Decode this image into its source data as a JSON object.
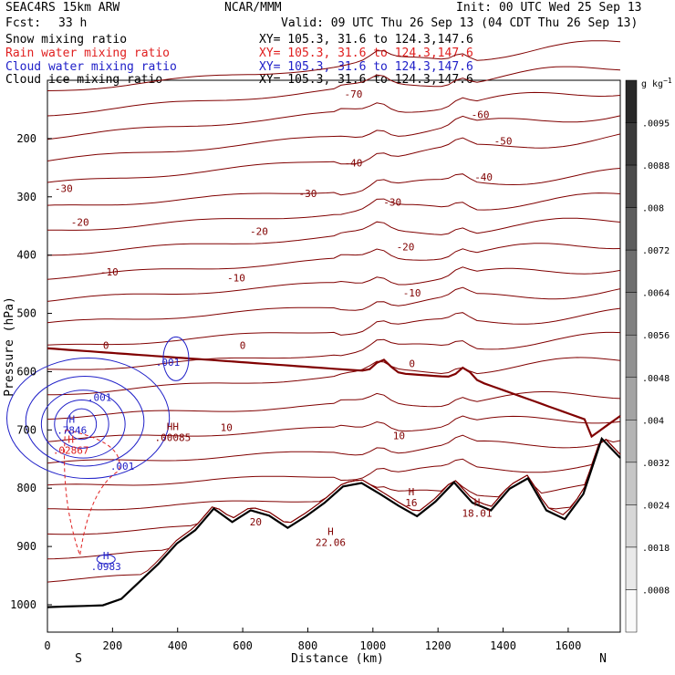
{
  "header": {
    "model": "SEAC4RS 15km ARW",
    "center": "NCAR/MMM",
    "init": "Init: 00 UTC Wed 25 Sep 13",
    "fcst_label": "Fcst:",
    "fcst_value": "33 h",
    "valid": "Valid: 09 UTC Thu 26 Sep 13 (04 CDT Thu 26 Sep 13)"
  },
  "fields": [
    {
      "name": "Snow mixing ratio",
      "xy": "XY= 105.3, 31.6 to 124.3,147.6",
      "color": "#000000"
    },
    {
      "name": "Rain water mixing ratio",
      "xy": "XY= 105.3, 31.6 to 124.3,147.6",
      "color": "#e02020"
    },
    {
      "name": "Cloud water mixing ratio",
      "xy": "XY= 105.3, 31.6 to 124.3,147.6",
      "color": "#2020c8"
    },
    {
      "name": "Cloud ice mixing ratio",
      "xy": "XY= 105.3, 31.6 to 124.3,147.6",
      "color": "#000000"
    }
  ],
  "colors": {
    "temperature": "#800000",
    "zero_isotherm": "#800000",
    "rain": "#e02020",
    "cloud_water": "#2020c8",
    "terrain": "#000000"
  },
  "chart_data": {
    "type": "contour",
    "xlabel": "Distance (km)",
    "ylabel": "Pressure (hPa)",
    "xlim": [
      0,
      1760
    ],
    "ylim": [
      1050,
      100
    ],
    "x_ticks": [
      0,
      200,
      400,
      600,
      800,
      1000,
      1200,
      1400,
      1600
    ],
    "y_ticks": [
      200,
      300,
      400,
      500,
      600,
      700,
      800,
      900,
      1000
    ],
    "endpoints": {
      "left": "S",
      "right": "N"
    },
    "colorbar": {
      "unit": "g kg",
      "unit_exp": "−1",
      "labels": [
        ".0095",
        ".0088",
        ".008",
        ".0072",
        ".0064",
        ".0056",
        ".0048",
        ".004",
        ".0032",
        ".0024",
        ".0018",
        ".0008"
      ]
    },
    "temperature_labels": [
      {
        "text": "-70",
        "x": 940,
        "p": 130
      },
      {
        "text": "-60",
        "x": 1330,
        "p": 165
      },
      {
        "text": "-50",
        "x": 1400,
        "p": 210
      },
      {
        "text": "-40",
        "x": 940,
        "p": 248
      },
      {
        "text": "-40",
        "x": 1340,
        "p": 272
      },
      {
        "text": "-30",
        "x": 50,
        "p": 292
      },
      {
        "text": "-30",
        "x": 800,
        "p": 300
      },
      {
        "text": "-30",
        "x": 1060,
        "p": 315
      },
      {
        "text": "-20",
        "x": 100,
        "p": 350
      },
      {
        "text": "-20",
        "x": 650,
        "p": 365
      },
      {
        "text": "-20",
        "x": 1100,
        "p": 392
      },
      {
        "text": "-10",
        "x": 190,
        "p": 435
      },
      {
        "text": "-10",
        "x": 580,
        "p": 445
      },
      {
        "text": "-10",
        "x": 1120,
        "p": 471
      },
      {
        "text": "0",
        "x": 180,
        "p": 561
      },
      {
        "text": "0",
        "x": 600,
        "p": 561
      },
      {
        "text": "0",
        "x": 1120,
        "p": 592
      },
      {
        "text": "10",
        "x": 550,
        "p": 702
      },
      {
        "text": "10",
        "x": 1080,
        "p": 716
      },
      {
        "text": "20",
        "x": 640,
        "p": 864
      }
    ],
    "extrema": [
      {
        "text": "H",
        "value": ".7846",
        "x": 75,
        "p": 688,
        "color": "#2020c8"
      },
      {
        "text": "H",
        "value": ".02867",
        "x": 72,
        "p": 722,
        "color": "#e02020"
      },
      {
        "text": "H",
        "value": ".0983",
        "x": 180,
        "p": 922,
        "color": "#2020c8"
      },
      {
        "text": "H",
        "value": "16",
        "x": 1118,
        "p": 812,
        "color": "#800000"
      },
      {
        "text": "H",
        "value": "18.01",
        "x": 1320,
        "p": 830,
        "color": "#800000"
      },
      {
        "text": "H",
        "value": "22.06",
        "x": 870,
        "p": 880,
        "color": "#800000"
      },
      {
        "text": "HH",
        "value": ".00085",
        "x": 385,
        "p": 700,
        "color": "#800000"
      }
    ],
    "cloud_labels": [
      {
        "text": ".001",
        "x": 370,
        "p": 590
      },
      {
        "text": ".001",
        "x": 160,
        "p": 650
      },
      {
        "text": ".001",
        "x": 230,
        "p": 768
      }
    ],
    "terrain_p": [
      1004,
      1003,
      1002,
      1001,
      990,
      960,
      930,
      895,
      872,
      835,
      858,
      838,
      847,
      868,
      848,
      825,
      797,
      791,
      810,
      830,
      848,
      823,
      790,
      825,
      838,
      801,
      783,
      838,
      853,
      810,
      715,
      748
    ]
  }
}
